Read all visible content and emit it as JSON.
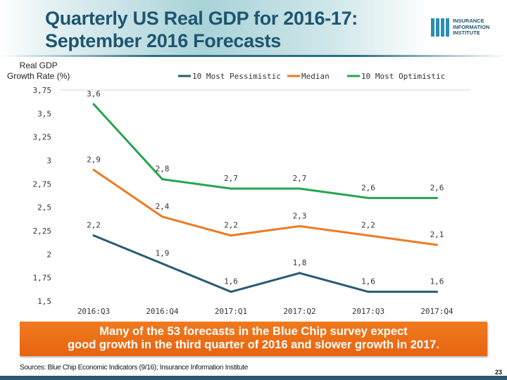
{
  "header": {
    "title_line1": "Quarterly US Real GDP for 2016-17:",
    "title_line2": "September 2016 Forecasts",
    "logo_text": [
      "INSURANCE",
      "INFORMATION",
      "INSTITUTE"
    ]
  },
  "chart_data": {
    "type": "line",
    "title": "Quarterly US Real GDP for 2016-17: September 2016 Forecasts",
    "ylabel_line1": "Real GDP",
    "ylabel_line2": "Growth Rate (%)",
    "categories": [
      "2016:Q3",
      "2016:Q4",
      "2017:Q1",
      "2017:Q2",
      "2017:Q3",
      "2017:Q4"
    ],
    "yticks": [
      "3,75",
      "3,5",
      "3,25",
      "3",
      "2,75",
      "2,5",
      "2,25",
      "2",
      "1,75",
      "1,5"
    ],
    "ylim": [
      1.5,
      3.75
    ],
    "legend_position": "top",
    "series": [
      {
        "name": "10 Most Pessimistic",
        "color": "#2a5a72",
        "values": [
          2.2,
          1.9,
          1.6,
          1.8,
          1.6,
          1.6
        ],
        "labels": [
          "2,2",
          "1,9",
          "1,6",
          "1,8",
          "1,6",
          "1,6"
        ]
      },
      {
        "name": "Median",
        "color": "#ee7a22",
        "values": [
          2.9,
          2.4,
          2.2,
          2.3,
          2.2,
          2.1
        ],
        "labels": [
          "2,9",
          "2,4",
          "2,2",
          "2,3",
          "2,2",
          "2,1"
        ]
      },
      {
        "name": "10 Most Optimistic",
        "color": "#27a450",
        "values": [
          3.6,
          2.8,
          2.7,
          2.7,
          2.6,
          2.6
        ],
        "labels": [
          "3,6",
          "2,8",
          "2,7",
          "2,7",
          "2,6",
          "2,6"
        ]
      }
    ]
  },
  "callout": {
    "line1": "Many of the 53 forecasts in the Blue Chip survey expect",
    "line2": "good growth in the third quarter of 2016 and slower growth in 2017."
  },
  "footer": {
    "source": "Sources: Blue Chip Economic Indicators (9/16); Insurance Information Institute",
    "page": "23"
  }
}
